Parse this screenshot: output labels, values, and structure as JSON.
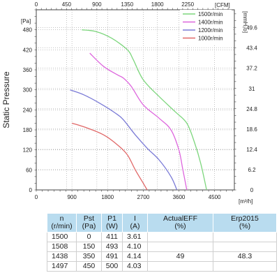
{
  "chart_data": {
    "type": "line",
    "ylabel": "Static Pressure",
    "units": {
      "pa": "[Pa]",
      "cfm": "[CFM]",
      "mmh2o": "[mmH₂o]",
      "m3h": "[m³/h]"
    },
    "x": {
      "min": 0,
      "max": 5000,
      "ticks": [
        0,
        900,
        1800,
        2700,
        3600,
        4500
      ],
      "tick_labels": [
        "0",
        "900",
        "1800",
        "2700",
        "3600",
        "4500"
      ]
    },
    "x_top": {
      "ticks_m3h": [
        0,
        764.6,
        1529.1,
        2293.7,
        3058.2,
        3822.8
      ],
      "tick_labels": [
        "0",
        "450",
        "900",
        "1350",
        "1800",
        "2250"
      ]
    },
    "y": {
      "min": 0,
      "max": 540,
      "ticks": [
        0,
        60,
        120,
        180,
        240,
        300,
        360,
        420,
        480
      ],
      "tick_labels": [
        "0",
        "60",
        "120",
        "180",
        "240",
        "300",
        "360",
        "420",
        "480"
      ]
    },
    "y_right": {
      "ticks_pa": [
        0,
        60.8,
        121.6,
        182.4,
        243.2,
        304,
        364.8,
        425.6,
        486.4
      ],
      "tick_labels": [
        "0",
        "6.2",
        "12.4",
        "18.6",
        "24.8",
        "31",
        "37.2",
        "43.4",
        "49.6"
      ]
    },
    "grid": true,
    "legend_position": "top-right",
    "series": [
      {
        "name": "1500r/min",
        "color": "#7dd67d",
        "points": [
          [
            1150,
            480
          ],
          [
            1500,
            475
          ],
          [
            1900,
            455
          ],
          [
            2300,
            420
          ],
          [
            2450,
            390
          ],
          [
            2700,
            330
          ],
          [
            3100,
            280
          ],
          [
            3500,
            235
          ],
          [
            3800,
            200
          ],
          [
            4000,
            140
          ],
          [
            4150,
            80
          ],
          [
            4300,
            0
          ]
        ]
      },
      {
        "name": "1400r/min",
        "color": "#dd66dd",
        "points": [
          [
            1350,
            410
          ],
          [
            1700,
            370
          ],
          [
            2050,
            345
          ],
          [
            2200,
            335
          ],
          [
            2400,
            310
          ],
          [
            2700,
            255
          ],
          [
            3100,
            215
          ],
          [
            3400,
            180
          ],
          [
            3600,
            120
          ],
          [
            3700,
            60
          ],
          [
            3800,
            0
          ]
        ]
      },
      {
        "name": "1200r/min",
        "color": "#7a7ad6",
        "points": [
          [
            850,
            300
          ],
          [
            1200,
            285
          ],
          [
            1600,
            260
          ],
          [
            2000,
            230
          ],
          [
            2200,
            210
          ],
          [
            2500,
            165
          ],
          [
            2800,
            125
          ],
          [
            3100,
            90
          ],
          [
            3400,
            40
          ],
          [
            3550,
            0
          ]
        ]
      },
      {
        "name": "1000r/min",
        "color": "#e06868",
        "points": [
          [
            900,
            200
          ],
          [
            1300,
            185
          ],
          [
            1700,
            165
          ],
          [
            2050,
            135
          ],
          [
            2300,
            105
          ],
          [
            2500,
            60
          ],
          [
            2700,
            20
          ],
          [
            2800,
            0
          ]
        ]
      }
    ]
  },
  "table": {
    "headers": [
      {
        "l1": "n",
        "l2": "(r/min)"
      },
      {
        "l1": "Pst",
        "l2": "(Pa)"
      },
      {
        "l1": "P1",
        "l2": "(W)"
      },
      {
        "l1": "I",
        "l2": "(A)"
      },
      {
        "l1": "ActualEFF",
        "l2": "(%)"
      },
      {
        "l1": "Erp2015",
        "l2": "(%)"
      }
    ],
    "rows": [
      {
        "n": "1500",
        "pst": "0",
        "p1": "411",
        "i": "3.61",
        "eff": "",
        "erp": ""
      },
      {
        "n": "1508",
        "pst": "150",
        "p1": "493",
        "i": "4.10",
        "eff": "",
        "erp": ""
      },
      {
        "n": "1438",
        "pst": "350",
        "p1": "491",
        "i": "4.14",
        "eff": "49",
        "erp": "48.3"
      },
      {
        "n": "1497",
        "pst": "450",
        "p1": "500",
        "i": "4.03",
        "eff": "",
        "erp": ""
      }
    ]
  }
}
